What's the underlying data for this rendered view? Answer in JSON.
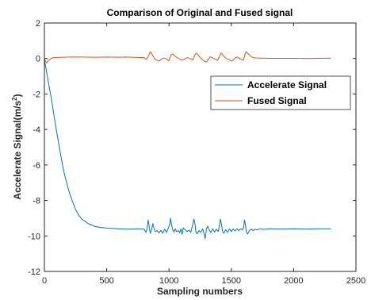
{
  "chart_data": {
    "type": "line",
    "title": "Comparison of Original and Fused signal",
    "xlabel": "Sampling numbers",
    "ylabel_main": "Accelerate Signal(m/s",
    "ylabel_sup": "2",
    "ylabel_tail": ")",
    "xlim": [
      0,
      2500
    ],
    "ylim": [
      -12,
      2
    ],
    "xticks": [
      0,
      500,
      1000,
      1500,
      2000,
      2500
    ],
    "yticks": [
      -12,
      -10,
      -8,
      -6,
      -4,
      -2,
      0,
      2
    ],
    "xtick_labels": [
      "0",
      "500",
      "1000",
      "1500",
      "2000",
      "2500"
    ],
    "ytick_labels": [
      "-12",
      "-10",
      "-8",
      "-6",
      "-4",
      "-2",
      "0",
      "2"
    ],
    "legend_position": "upper-right",
    "series": [
      {
        "name": "Accelerate Signal",
        "color": "#0072BD",
        "x": [
          0,
          10,
          20,
          30,
          40,
          50,
          60,
          80,
          100,
          120,
          140,
          160,
          180,
          200,
          225,
          250,
          275,
          300,
          350,
          400,
          450,
          500,
          550,
          600,
          650,
          700,
          750,
          800,
          815,
          825,
          833,
          840,
          850,
          860,
          870,
          880,
          890,
          905,
          920,
          935,
          950,
          965,
          980,
          995,
          1005,
          1012,
          1020,
          1030,
          1040,
          1050,
          1060,
          1075,
          1085,
          1095,
          1105,
          1115,
          1130,
          1145,
          1160,
          1175,
          1185,
          1195,
          1200,
          1208,
          1215,
          1225,
          1240,
          1255,
          1270,
          1280,
          1290,
          1295,
          1300,
          1310,
          1320,
          1335,
          1350,
          1365,
          1380,
          1395,
          1405,
          1412,
          1420,
          1430,
          1440,
          1455,
          1470,
          1485,
          1500,
          1515,
          1530,
          1545,
          1560,
          1575,
          1590,
          1600,
          1605,
          1612,
          1620,
          1630,
          1645,
          1660,
          1675,
          1690,
          1710,
          1730,
          1760,
          1800,
          1900,
          2000,
          2100,
          2200,
          2300
        ],
        "y": [
          -0.05,
          -0.45,
          -0.85,
          -1.25,
          -1.65,
          -2.05,
          -2.45,
          -3.35,
          -4.2,
          -5.0,
          -5.8,
          -6.5,
          -7.05,
          -7.55,
          -8.05,
          -8.5,
          -8.82,
          -9.05,
          -9.3,
          -9.45,
          -9.52,
          -9.56,
          -9.58,
          -9.6,
          -9.61,
          -9.62,
          -9.6,
          -9.62,
          -9.8,
          -9.55,
          -9.1,
          -9.4,
          -9.85,
          -9.65,
          -9.3,
          -9.6,
          -9.75,
          -9.7,
          -9.82,
          -9.68,
          -9.85,
          -9.62,
          -9.8,
          -9.55,
          -9.35,
          -9.0,
          -9.35,
          -9.65,
          -9.78,
          -9.6,
          -9.75,
          -9.7,
          -9.82,
          -9.6,
          -9.9,
          -9.55,
          -9.65,
          -9.75,
          -9.68,
          -9.8,
          -9.5,
          -9.2,
          -9.05,
          -9.3,
          -9.75,
          -9.88,
          -9.7,
          -9.8,
          -9.6,
          -9.85,
          -10.15,
          -9.9,
          -9.6,
          -9.45,
          -9.62,
          -9.8,
          -9.6,
          -9.78,
          -9.62,
          -9.75,
          -9.4,
          -9.05,
          -9.3,
          -9.75,
          -9.85,
          -9.65,
          -9.8,
          -9.6,
          -9.75,
          -9.6,
          -9.72,
          -9.58,
          -9.7,
          -9.6,
          -9.65,
          -9.5,
          -9.1,
          -9.3,
          -9.75,
          -9.9,
          -9.7,
          -9.6,
          -9.7,
          -9.62,
          -9.66,
          -9.6,
          -9.63,
          -9.6,
          -9.61,
          -9.6,
          -9.61,
          -9.6,
          -9.6
        ]
      },
      {
        "name": "Fused Signal",
        "color": "#D95319",
        "x": [
          0,
          10,
          20,
          30,
          45,
          60,
          80,
          100,
          150,
          200,
          300,
          400,
          500,
          600,
          650,
          700,
          750,
          800,
          815,
          825,
          835,
          845,
          850,
          860,
          870,
          880,
          890,
          905,
          920,
          935,
          950,
          965,
          980,
          990,
          1000,
          1008,
          1015,
          1025,
          1035,
          1045,
          1055,
          1065,
          1075,
          1090,
          1105,
          1120,
          1135,
          1150,
          1165,
          1180,
          1190,
          1200,
          1208,
          1215,
          1225,
          1235,
          1245,
          1255,
          1270,
          1285,
          1300,
          1315,
          1330,
          1345,
          1360,
          1375,
          1390,
          1400,
          1410,
          1418,
          1425,
          1435,
          1445,
          1460,
          1475,
          1490,
          1505,
          1520,
          1535,
          1550,
          1565,
          1580,
          1595,
          1605,
          1612,
          1620,
          1630,
          1645,
          1660,
          1680,
          1700,
          1750,
          1800,
          1900,
          2000,
          2100,
          2200,
          2300
        ],
        "y": [
          0.0,
          -0.18,
          -0.25,
          -0.12,
          -0.05,
          0.02,
          0.05,
          0.06,
          0.07,
          0.08,
          0.08,
          0.07,
          0.08,
          0.07,
          0.08,
          0.07,
          0.06,
          0.05,
          -0.05,
          0.0,
          0.15,
          0.3,
          0.38,
          0.3,
          0.15,
          0.05,
          -0.05,
          -0.1,
          -0.15,
          -0.05,
          0.0,
          0.02,
          -0.03,
          -0.1,
          -0.12,
          0.05,
          0.2,
          0.25,
          0.22,
          0.15,
          0.1,
          0.05,
          0.0,
          -0.05,
          -0.1,
          -0.05,
          0.0,
          0.05,
          0.0,
          -0.02,
          -0.08,
          0.05,
          0.2,
          0.3,
          0.28,
          0.2,
          0.1,
          0.02,
          -0.08,
          -0.15,
          -0.2,
          -0.05,
          0.1,
          0.05,
          0.0,
          -0.05,
          -0.1,
          0.05,
          0.2,
          0.3,
          0.28,
          0.18,
          0.1,
          0.0,
          -0.05,
          -0.1,
          -0.15,
          -0.05,
          0.05,
          0.08,
          0.0,
          -0.05,
          -0.1,
          0.1,
          0.3,
          0.38,
          0.3,
          0.2,
          0.1,
          0.05,
          0.03,
          0.02,
          0.01,
          0.01,
          0.01,
          0.0,
          0.01,
          0.02
        ]
      }
    ]
  }
}
